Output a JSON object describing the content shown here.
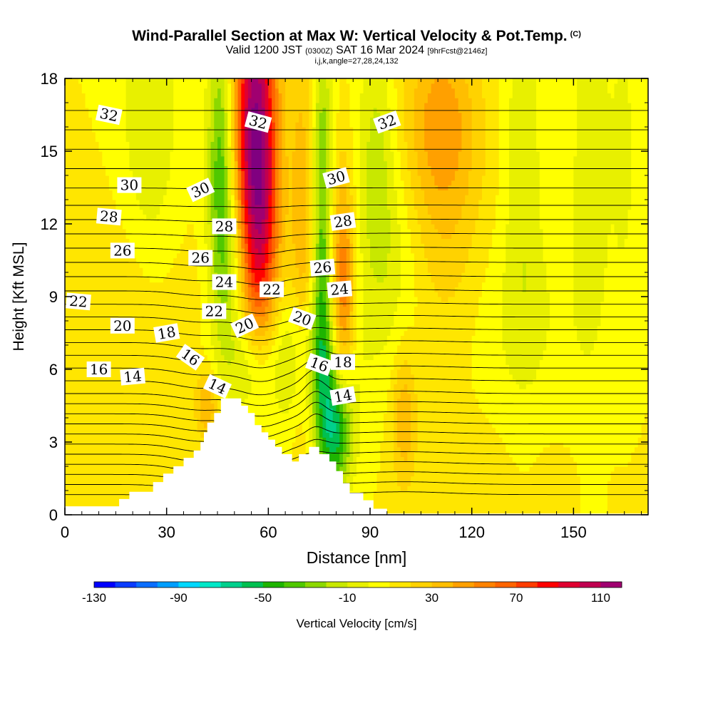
{
  "header": {
    "title": "Wind-Parallel Section at Max W: Vertical Velocity & Pot.Temp.",
    "title_mark": "(C)",
    "valid_prefix": "Valid 1200 JST",
    "valid_utc": "(0300Z)",
    "valid_date": "SAT 16 Mar 2024",
    "forecast": "[9hrFcst@2146z]",
    "ijk_line": "i,j,k,angle=27,28,24,132"
  },
  "chart_data": {
    "type": "heatmap",
    "xlabel": "Distance [nm]",
    "ylabel": "Height [Kft MSL]",
    "xlim": [
      0,
      172
    ],
    "ylim": [
      0,
      18
    ],
    "x_ticks": [
      "0",
      "30",
      "60",
      "90",
      "120",
      "150"
    ],
    "y_ticks": [
      "0",
      "3",
      "6",
      "9",
      "12",
      "15",
      "18"
    ],
    "colorbar": {
      "label": "Vertical Velocity [cm/s]",
      "min": -130,
      "max": 120,
      "step": 10,
      "tick_labels": [
        "-130",
        "-90",
        "-50",
        "-10",
        "30",
        "70",
        "110"
      ],
      "colors": [
        "#0000ff",
        "#0a3cff",
        "#0a6eff",
        "#009eff",
        "#00d8ff",
        "#00e8c8",
        "#00d08c",
        "#00c050",
        "#1eb400",
        "#50c800",
        "#8cd800",
        "#c8e800",
        "#e8f000",
        "#ffff00",
        "#ffe600",
        "#ffd200",
        "#ffbe00",
        "#ffa000",
        "#ff8200",
        "#ff6400",
        "#ff3c00",
        "#ff0000",
        "#e00030",
        "#c00050",
        "#a00070",
        "#800080"
      ]
    },
    "terrain_top": [
      [
        0,
        0.35
      ],
      [
        10,
        0.35
      ],
      [
        16,
        0.35
      ],
      [
        16,
        0.65
      ],
      [
        19,
        0.65
      ],
      [
        19,
        0.95
      ],
      [
        26,
        0.95
      ],
      [
        26,
        1.35
      ],
      [
        29,
        1.35
      ],
      [
        29,
        1.7
      ],
      [
        32,
        1.7
      ],
      [
        32,
        2.0
      ],
      [
        35,
        2.0
      ],
      [
        35,
        2.35
      ],
      [
        38,
        2.35
      ],
      [
        38,
        2.65
      ],
      [
        40,
        2.65
      ],
      [
        40,
        3.0
      ],
      [
        41,
        3.0
      ],
      [
        41,
        3.4
      ],
      [
        42,
        3.4
      ],
      [
        42,
        3.8
      ],
      [
        44,
        3.8
      ],
      [
        44,
        4.2
      ],
      [
        46,
        4.2
      ],
      [
        46,
        4.8
      ],
      [
        52,
        4.8
      ],
      [
        52,
        4.5
      ],
      [
        54,
        4.5
      ],
      [
        54,
        4.2
      ],
      [
        56,
        4.2
      ],
      [
        56,
        3.7
      ],
      [
        58,
        3.7
      ],
      [
        58,
        3.4
      ],
      [
        60,
        3.4
      ],
      [
        60,
        3.1
      ],
      [
        62,
        3.1
      ],
      [
        62,
        2.8
      ],
      [
        64,
        2.8
      ],
      [
        64,
        2.5
      ],
      [
        67,
        2.5
      ],
      [
        67,
        2.2
      ],
      [
        69,
        2.2
      ],
      [
        69,
        2.5
      ],
      [
        72,
        2.5
      ],
      [
        72,
        2.8
      ],
      [
        75,
        2.8
      ],
      [
        75,
        2.5
      ],
      [
        78,
        2.5
      ],
      [
        78,
        2.2
      ],
      [
        80,
        2.2
      ],
      [
        80,
        1.8
      ],
      [
        82,
        1.8
      ],
      [
        82,
        1.3
      ],
      [
        84,
        1.3
      ],
      [
        84,
        0.9
      ],
      [
        88,
        0.9
      ],
      [
        88,
        0.6
      ],
      [
        91,
        0.6
      ],
      [
        91,
        0.25
      ],
      [
        95,
        0.25
      ],
      [
        95,
        0.05
      ],
      [
        172,
        0.05
      ]
    ],
    "w_features": [
      {
        "x": 56,
        "y": 16.5,
        "sx": 4.5,
        "sy": 5.0,
        "w": 95
      },
      {
        "x": 58,
        "y": 11.5,
        "sx": 4.0,
        "sy": 4.0,
        "w": 45
      },
      {
        "x": 46,
        "y": 14.0,
        "sx": 2.8,
        "sy": 4.5,
        "w": -50
      },
      {
        "x": 50,
        "y": 10.0,
        "sx": 3.0,
        "sy": 2.5,
        "w": -20
      },
      {
        "x": 70,
        "y": 11.0,
        "sx": 2.5,
        "sy": 6.0,
        "w": 30
      },
      {
        "x": 76,
        "y": 9.5,
        "sx": 2.0,
        "sy": 4.0,
        "w": -40
      },
      {
        "x": 76,
        "y": 16.0,
        "sx": 2.2,
        "sy": 3.0,
        "w": -25
      },
      {
        "x": 82,
        "y": 9.0,
        "sx": 2.5,
        "sy": 3.5,
        "w": 55
      },
      {
        "x": 80,
        "y": 3.5,
        "sx": 3.5,
        "sy": 1.8,
        "w": -70
      },
      {
        "x": 72,
        "y": 6.5,
        "sx": 9.0,
        "sy": 2.2,
        "w": -30
      },
      {
        "x": 55,
        "y": 6.0,
        "sx": 5.0,
        "sy": 1.5,
        "w": -25
      },
      {
        "x": 98,
        "y": 11.0,
        "sx": 8.0,
        "sy": 3.5,
        "w": -25
      },
      {
        "x": 108,
        "y": 13.0,
        "sx": 10.0,
        "sy": 4.5,
        "w": 28
      },
      {
        "x": 112,
        "y": 16.5,
        "sx": 7.0,
        "sy": 2.5,
        "w": 20
      },
      {
        "x": 100,
        "y": 4.0,
        "sx": 2.5,
        "sy": 2.0,
        "w": 28
      },
      {
        "x": 25,
        "y": 16.0,
        "sx": 6.0,
        "sy": 5.0,
        "w": -20
      },
      {
        "x": 20,
        "y": 9.0,
        "sx": 12.0,
        "sy": 3.0,
        "w": 10
      },
      {
        "x": 42,
        "y": 4.5,
        "sx": 2.5,
        "sy": 1.0,
        "w": 30
      },
      {
        "x": 135,
        "y": 15.0,
        "sx": 4.0,
        "sy": 6.0,
        "w": -18
      },
      {
        "x": 155,
        "y": 15.0,
        "sx": 4.0,
        "sy": 6.0,
        "w": -18
      },
      {
        "x": 165,
        "y": 15.0,
        "sx": 3.0,
        "sy": 5.0,
        "w": -12
      },
      {
        "x": 135,
        "y": 8.0,
        "sx": 14.0,
        "sy": 3.0,
        "w": -10
      },
      {
        "x": 130,
        "y": 2.5,
        "sx": 20.0,
        "sy": 2.0,
        "w": 3
      },
      {
        "x": 12,
        "y": 2.5,
        "sx": 10.0,
        "sy": 2.0,
        "w": 3
      },
      {
        "x": 92,
        "y": 15.5,
        "sx": 4.0,
        "sy": 4.0,
        "w": -22
      }
    ],
    "theta_levels": [
      6,
      7,
      8,
      9,
      10,
      11,
      12,
      13,
      14,
      15,
      16,
      17,
      18,
      19,
      20,
      21,
      22,
      23,
      24,
      25,
      26,
      27,
      28,
      29,
      30,
      31,
      32,
      33,
      34,
      35
    ],
    "theta_labels": [
      {
        "text": "32",
        "x": 13,
        "y": 16.5,
        "rot": 12
      },
      {
        "text": "32",
        "x": 57,
        "y": 16.2,
        "rot": 15
      },
      {
        "text": "32",
        "x": 95,
        "y": 16.2,
        "rot": -20
      },
      {
        "text": "30",
        "x": 19,
        "y": 13.6,
        "rot": 0
      },
      {
        "text": "30",
        "x": 40,
        "y": 13.4,
        "rot": -25
      },
      {
        "text": "30",
        "x": 80,
        "y": 13.9,
        "rot": -15
      },
      {
        "text": "28",
        "x": 13,
        "y": 12.3,
        "rot": 5
      },
      {
        "text": "28",
        "x": 47,
        "y": 11.9,
        "rot": 0
      },
      {
        "text": "28",
        "x": 82,
        "y": 12.1,
        "rot": -8
      },
      {
        "text": "26",
        "x": 17,
        "y": 10.9,
        "rot": 0
      },
      {
        "text": "26",
        "x": 40,
        "y": 10.6,
        "rot": 0
      },
      {
        "text": "26",
        "x": 76,
        "y": 10.2,
        "rot": -5
      },
      {
        "text": "24",
        "x": 47,
        "y": 9.6,
        "rot": 0
      },
      {
        "text": "24",
        "x": 81,
        "y": 9.3,
        "rot": -5
      },
      {
        "text": "22",
        "x": 4,
        "y": 8.8,
        "rot": 5
      },
      {
        "text": "22",
        "x": 44,
        "y": 8.4,
        "rot": 0
      },
      {
        "text": "22",
        "x": 61,
        "y": 9.3,
        "rot": 0
      },
      {
        "text": "20",
        "x": 17,
        "y": 7.8,
        "rot": 0
      },
      {
        "text": "20",
        "x": 53,
        "y": 7.8,
        "rot": -25
      },
      {
        "text": "20",
        "x": 70,
        "y": 8.1,
        "rot": 20
      },
      {
        "text": "18",
        "x": 30,
        "y": 7.5,
        "rot": -10
      },
      {
        "text": "18",
        "x": 82,
        "y": 6.3,
        "rot": 0
      },
      {
        "text": "16",
        "x": 10,
        "y": 6.0,
        "rot": 0
      },
      {
        "text": "16",
        "x": 37,
        "y": 6.5,
        "rot": 35
      },
      {
        "text": "16",
        "x": 75,
        "y": 6.2,
        "rot": 20
      },
      {
        "text": "14",
        "x": 20,
        "y": 5.7,
        "rot": -5
      },
      {
        "text": "14",
        "x": 45,
        "y": 5.3,
        "rot": 25
      },
      {
        "text": "14",
        "x": 82,
        "y": 4.9,
        "rot": -10
      }
    ]
  }
}
